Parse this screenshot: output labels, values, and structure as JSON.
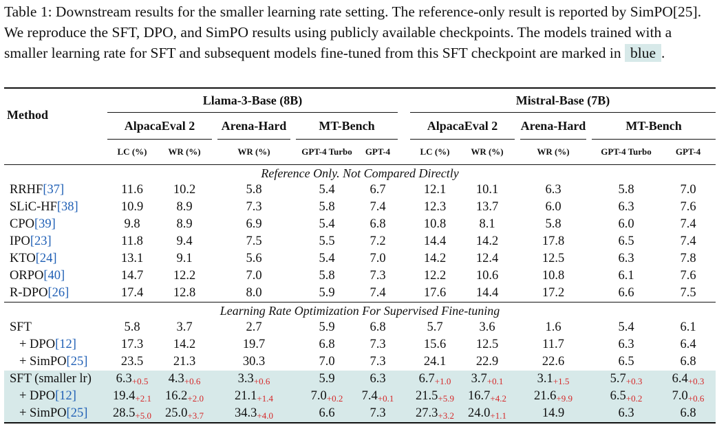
{
  "caption": {
    "text_before": "Table 1: Downstream results for the smaller learning rate setting. The reference-only result is reported by SimPO[25]. We reproduce the SFT, DPO, and SimPO results using publicly available checkpoints. The models trained with a smaller learning rate for SFT and subsequent models fine-tuned from this SFT checkpoint are marked in",
    "highlight": "blue",
    "text_after": "."
  },
  "header": {
    "method": "Method",
    "group_llama": "Llama-3-Base (8B)",
    "group_mistral": "Mistral-Base (7B)",
    "alpaca": "AlpacaEval 2",
    "arena": "Arena-Hard",
    "mtbench": "MT-Bench",
    "lc": "LC (%)",
    "wr": "WR (%)",
    "gpt4turbo": "GPT-4 Turbo",
    "gpt4": "GPT-4"
  },
  "colors": {
    "highlight": "#d7e9e9",
    "citation": "#1f5fb5",
    "delta": "#d62728"
  },
  "sections": {
    "reference": "Reference Only. Not Compared Directly",
    "lr": "Learning Rate Optimization For Supervised Fine-tuning"
  },
  "reference_rows": [
    {
      "method": "RRHF",
      "ref": "[37]",
      "values": [
        "11.6",
        "10.2",
        "5.8",
        "5.4",
        "6.7",
        "12.1",
        "10.1",
        "6.3",
        "5.8",
        "7.0"
      ]
    },
    {
      "method": "SLiC-HF",
      "ref": "[38]",
      "values": [
        "10.9",
        "8.9",
        "7.3",
        "5.8",
        "7.4",
        "12.3",
        "13.7",
        "6.0",
        "6.3",
        "7.6"
      ]
    },
    {
      "method": "CPO",
      "ref": "[39]",
      "values": [
        "9.8",
        "8.9",
        "6.9",
        "5.4",
        "6.8",
        "10.8",
        "8.1",
        "5.8",
        "6.0",
        "7.4"
      ]
    },
    {
      "method": "IPO",
      "ref": "[23]",
      "values": [
        "11.8",
        "9.4",
        "7.5",
        "5.5",
        "7.2",
        "14.4",
        "14.2",
        "17.8",
        "6.5",
        "7.4"
      ]
    },
    {
      "method": "KTO",
      "ref": "[24]",
      "values": [
        "13.1",
        "9.1",
        "5.6",
        "5.4",
        "7.0",
        "14.2",
        "12.4",
        "12.5",
        "6.3",
        "7.8"
      ]
    },
    {
      "method": "ORPO",
      "ref": "[40]",
      "values": [
        "14.7",
        "12.2",
        "7.0",
        "5.8",
        "7.3",
        "12.2",
        "10.6",
        "10.8",
        "6.1",
        "7.6"
      ]
    },
    {
      "method": "R-DPO",
      "ref": "[26]",
      "values": [
        "17.4",
        "12.8",
        "8.0",
        "5.9",
        "7.4",
        "17.6",
        "14.4",
        "17.2",
        "6.6",
        "7.5"
      ]
    }
  ],
  "lr_rows": [
    {
      "method": "SFT",
      "ref": "",
      "sub": false,
      "shaded": false,
      "values": [
        "5.8",
        "3.7",
        "2.7",
        "5.9",
        "6.8",
        "5.7",
        "3.6",
        "1.6",
        "5.4",
        "6.1"
      ],
      "deltas": [
        "",
        "",
        "",
        "",
        "",
        "",
        "",
        "",
        "",
        ""
      ]
    },
    {
      "method": "+ DPO",
      "ref": "[12]",
      "sub": true,
      "shaded": false,
      "values": [
        "17.3",
        "14.2",
        "19.7",
        "6.8",
        "7.3",
        "15.6",
        "12.5",
        "11.7",
        "6.3",
        "6.4"
      ],
      "deltas": [
        "",
        "",
        "",
        "",
        "",
        "",
        "",
        "",
        "",
        ""
      ]
    },
    {
      "method": "+ SimPO",
      "ref": "[25]",
      "sub": true,
      "shaded": false,
      "values": [
        "23.5",
        "21.3",
        "30.3",
        "7.0",
        "7.3",
        "24.1",
        "22.9",
        "22.6",
        "6.5",
        "6.8"
      ],
      "deltas": [
        "",
        "",
        "",
        "",
        "",
        "",
        "",
        "",
        "",
        ""
      ]
    },
    {
      "method": "SFT (smaller lr)",
      "ref": "",
      "sub": false,
      "shaded": true,
      "values": [
        "6.3",
        "4.3",
        "3.3",
        "5.9",
        "6.3",
        "6.7",
        "3.7",
        "3.1",
        "5.7",
        "6.4"
      ],
      "deltas": [
        "+0.5",
        "+0.6",
        "+0.6",
        "",
        "",
        "+1.0",
        "+0.1",
        "+1.5",
        "+0.3",
        "+0.3"
      ]
    },
    {
      "method": "+ DPO",
      "ref": "[12]",
      "sub": true,
      "shaded": true,
      "values": [
        "19.4",
        "16.2",
        "21.1",
        "7.0",
        "7.4",
        "21.5",
        "16.7",
        "21.6",
        "6.5",
        "7.0"
      ],
      "deltas": [
        "+2.1",
        "+2.0",
        "+1.4",
        "+0.2",
        "+0.1",
        "+5.9",
        "+4.2",
        "+9.9",
        "+0.2",
        "+0.6"
      ]
    },
    {
      "method": "+ SimPO",
      "ref": "[25]",
      "sub": true,
      "shaded": true,
      "values": [
        "28.5",
        "25.0",
        "34.3",
        "6.6",
        "7.3",
        "27.3",
        "24.0",
        "14.9",
        "6.3",
        "6.8"
      ],
      "deltas": [
        "+5.0",
        "+3.7",
        "+4.0",
        "",
        "",
        "+3.2",
        "+1.1",
        "",
        "",
        ""
      ]
    }
  ]
}
